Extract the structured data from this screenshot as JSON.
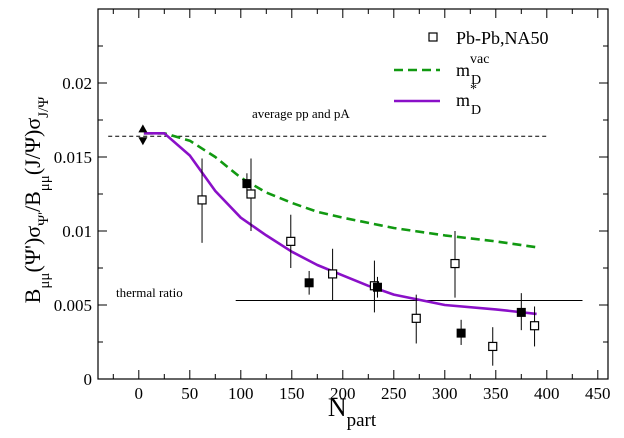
{
  "chart_data": {
    "type": "scatter",
    "xlabel": "N",
    "xlabel_sub": "part",
    "ylabel_parts": [
      "B",
      "μμ",
      "(Ψ')σ",
      "Ψ'",
      "/B",
      "μμ",
      "(J/Ψ)σ",
      "J/Ψ"
    ],
    "xlim": [
      -40,
      460
    ],
    "ylim": [
      0,
      0.025
    ],
    "xticks": [
      0,
      50,
      100,
      150,
      200,
      250,
      300,
      350,
      400,
      450
    ],
    "xtick_labels": [
      "0",
      "50",
      "100",
      "150",
      "200",
      "250",
      "300",
      "350",
      "400",
      "450"
    ],
    "yticks": [
      0,
      0.005,
      0.01,
      0.015,
      0.02
    ],
    "ytick_labels": [
      "0",
      "0.005",
      "0.01",
      "0.015",
      "0.02"
    ],
    "grid": false,
    "legend_position": "top-right",
    "colors": {
      "vac": "#119911",
      "star": "#8a10c8",
      "data": "#000000"
    },
    "series": [
      {
        "name": "Pb-Pb,NA50",
        "kind": "open-square",
        "points": [
          {
            "x": 62,
            "y": 0.0121,
            "lo": 0.0092,
            "hi": 0.0149
          },
          {
            "x": 110,
            "y": 0.0125,
            "lo": 0.01,
            "hi": 0.0149
          },
          {
            "x": 149,
            "y": 0.0093,
            "lo": 0.0075,
            "hi": 0.0111
          },
          {
            "x": 190,
            "y": 0.0071,
            "lo": 0.0053,
            "hi": 0.0088
          },
          {
            "x": 231,
            "y": 0.0063,
            "lo": 0.0045,
            "hi": 0.008
          },
          {
            "x": 272,
            "y": 0.0041,
            "lo": 0.0024,
            "hi": 0.0057
          },
          {
            "x": 310,
            "y": 0.0078,
            "lo": 0.0055,
            "hi": 0.01
          },
          {
            "x": 347,
            "y": 0.0022,
            "lo": 0.0009,
            "hi": 0.0035
          },
          {
            "x": 388,
            "y": 0.0036,
            "lo": 0.0022,
            "hi": 0.0049
          }
        ]
      },
      {
        "name": "",
        "kind": "filled-square",
        "points": [
          {
            "x": 106,
            "y": 0.0132,
            "lo": 0.0125,
            "hi": 0.0139
          },
          {
            "x": 167,
            "y": 0.0065,
            "lo": 0.0057,
            "hi": 0.0073
          },
          {
            "x": 234,
            "y": 0.0062,
            "lo": 0.0055,
            "hi": 0.0069
          },
          {
            "x": 316,
            "y": 0.0031,
            "lo": 0.0023,
            "hi": 0.004
          },
          {
            "x": 375,
            "y": 0.0045,
            "lo": 0.0033,
            "hi": 0.0058
          }
        ]
      },
      {
        "name": "",
        "kind": "triangles",
        "points": [
          {
            "x": 4,
            "y": 0.0169,
            "dir": "up"
          },
          {
            "x": 4,
            "y": 0.0161,
            "dir": "down"
          }
        ]
      },
      {
        "name": "m_D^vac",
        "name_base": "m",
        "name_sub": "D",
        "name_sup": "vac",
        "kind": "dashed-line",
        "x": [
          5,
          25,
          50,
          75,
          100,
          125,
          150,
          175,
          200,
          250,
          300,
          350,
          390
        ],
        "y": [
          0.0166,
          0.0166,
          0.0161,
          0.015,
          0.0136,
          0.0126,
          0.0119,
          0.0113,
          0.0109,
          0.0102,
          0.0097,
          0.0093,
          0.0089
        ]
      },
      {
        "name": "m_D^*",
        "name_base": "m",
        "name_sub": "D",
        "name_sup": "*",
        "kind": "solid-line",
        "x": [
          5,
          25,
          50,
          75,
          100,
          125,
          150,
          175,
          200,
          225,
          250,
          300,
          350,
          390
        ],
        "y": [
          0.0166,
          0.0166,
          0.0151,
          0.0127,
          0.0109,
          0.0097,
          0.0086,
          0.0077,
          0.007,
          0.0063,
          0.0057,
          0.005,
          0.0047,
          0.0044
        ]
      }
    ],
    "reference_lines": [
      {
        "label": "average pp and pA",
        "y": 0.0164,
        "x_from": -30,
        "x_to": 400,
        "style": "dashed"
      },
      {
        "label": "thermal ratio",
        "y": 0.0053,
        "x_from": 95,
        "x_to": 435,
        "style": "solid"
      }
    ]
  }
}
